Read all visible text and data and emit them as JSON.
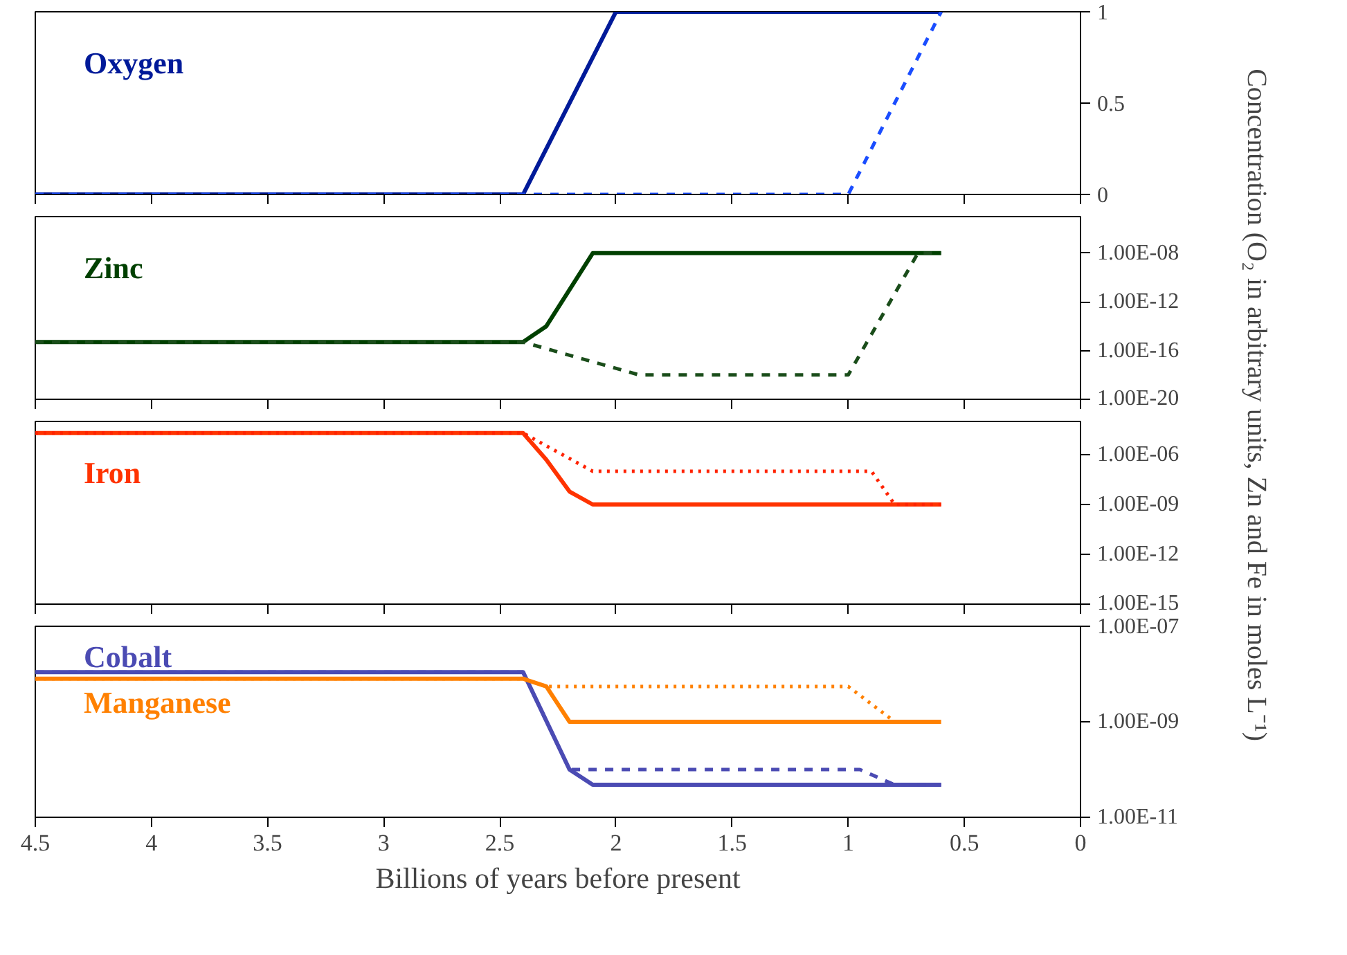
{
  "chart_data": [
    {
      "type": "line",
      "ylabel": "Concentration (O₂ in arbitrary units, Zn and Fe in moles L⁻¹)",
      "xlim": [
        4.5,
        0
      ],
      "xticks": [
        4.5,
        4,
        3.5,
        3,
        2.5,
        2,
        1.5,
        1,
        0.5,
        0
      ],
      "ylim": [
        0,
        1
      ],
      "yticks": [
        0,
        0.5,
        1
      ],
      "tick_labels": "y",
      "grid": false,
      "legend": false,
      "series": [
        {
          "name": "Oxygen",
          "color": "#001a99",
          "line_style": "solid",
          "x": [
            4.5,
            2.4,
            2.0,
            0.6
          ],
          "values": [
            0,
            0,
            1,
            1
          ]
        },
        {
          "color": "#1a4dff",
          "line_style": "dashed",
          "x": [
            4.5,
            1.0,
            0.6
          ],
          "values": [
            0,
            0,
            1
          ]
        }
      ]
    },
    {
      "type": "line",
      "log": "y",
      "xlim": [
        4.5,
        0
      ],
      "xticks": [
        4.5,
        4,
        3.5,
        3,
        2.5,
        2,
        1.5,
        1,
        0.5,
        0
      ],
      "ylim": [
        1e-20,
        1e-05
      ],
      "yticks": [
        {
          "value": 1e-08,
          "label": "1.00E-08"
        },
        {
          "value": 1e-12,
          "label": "1.00E-12"
        },
        {
          "value": 1e-16,
          "label": "1.00E-16"
        },
        {
          "value": 1e-20,
          "label": "1.00E-20"
        }
      ],
      "tick_labels": "y",
      "grid": false,
      "legend": false,
      "series": [
        {
          "name": "Zinc",
          "color": "#004000",
          "line_style": "solid",
          "x": [
            4.5,
            2.4,
            2.3,
            2.1,
            0.6
          ],
          "values": [
            5e-16,
            5e-16,
            1e-14,
            1e-08,
            1e-08
          ]
        },
        {
          "color": "#1a4d1a",
          "line_style": "dashed",
          "x": [
            4.5,
            2.4,
            1.9,
            1.0,
            0.7,
            0.6
          ],
          "values": [
            5e-16,
            5e-16,
            1e-18,
            1e-18,
            1e-08,
            1e-08
          ]
        }
      ]
    },
    {
      "type": "line",
      "log": "y",
      "xlim": [
        4.5,
        0
      ],
      "xticks": [
        4.5,
        4,
        3.5,
        3,
        2.5,
        2,
        1.5,
        1,
        0.5,
        0
      ],
      "ylim": [
        1e-15,
        0.0001
      ],
      "yticks": [
        {
          "value": 1e-06,
          "label": "1.00E-06"
        },
        {
          "value": 1e-09,
          "label": "1.00E-09"
        },
        {
          "value": 1e-12,
          "label": "1.00E-12"
        },
        {
          "value": 1e-15,
          "label": "1.00E-15"
        }
      ],
      "tick_labels": "y",
      "grid": false,
      "legend": false,
      "series": [
        {
          "name": "Iron",
          "color": "#ff3300",
          "line_style": "solid",
          "x": [
            4.5,
            2.4,
            2.3,
            2.2,
            2.1,
            0.6
          ],
          "values": [
            2e-05,
            2e-05,
            5e-07,
            6e-09,
            1e-09,
            1e-09
          ]
        },
        {
          "color": "#ff2200",
          "line_style": "dotted",
          "x": [
            4.5,
            2.4,
            2.1,
            0.9,
            0.8,
            0.6
          ],
          "values": [
            2e-05,
            2e-05,
            1e-07,
            1e-07,
            1e-09,
            1e-09
          ]
        }
      ]
    },
    {
      "type": "line",
      "log": "y",
      "xlabel": "Billions of years before present",
      "xlim": [
        4.5,
        0
      ],
      "xticks": [
        4.5,
        4,
        3.5,
        3,
        2.5,
        2,
        1.5,
        1,
        0.5,
        0
      ],
      "ylim": [
        1e-11,
        1e-07
      ],
      "yticks": [
        {
          "value": 1e-07,
          "label": "1.00E-07"
        },
        {
          "value": 1e-09,
          "label": "1.00E-09"
        },
        {
          "value": 1e-11,
          "label": "1.00E-11"
        }
      ],
      "grid": false,
      "legend": false,
      "series": [
        {
          "name": "Cobalt",
          "color": "#4b4bb3",
          "line_style": "solid",
          "x": [
            4.5,
            2.4,
            2.2,
            2.1,
            0.6
          ],
          "values": [
            1.1e-08,
            1.1e-08,
            1e-10,
            4.8e-11,
            4.8e-11
          ]
        },
        {
          "color": "#4b4bb3",
          "line_style": "dashed",
          "x": [
            4.5,
            2.4,
            2.2,
            0.95,
            0.8,
            0.6
          ],
          "values": [
            1.1e-08,
            1.1e-08,
            1e-10,
            1e-10,
            4.8e-11,
            4.8e-11
          ]
        },
        {
          "name": "Manganese",
          "color": "#ff8000",
          "line_style": "solid",
          "x": [
            4.5,
            2.4,
            2.3,
            2.2,
            0.6
          ],
          "values": [
            8e-09,
            8e-09,
            5.5e-09,
            1e-09,
            1e-09
          ]
        },
        {
          "color": "#ff8000",
          "line_style": "dotted",
          "x": [
            4.5,
            2.4,
            2.3,
            1.0,
            0.8,
            0.6
          ],
          "values": [
            8e-09,
            8e-09,
            5.5e-09,
            5.5e-09,
            1e-09,
            1e-09
          ]
        }
      ]
    }
  ]
}
